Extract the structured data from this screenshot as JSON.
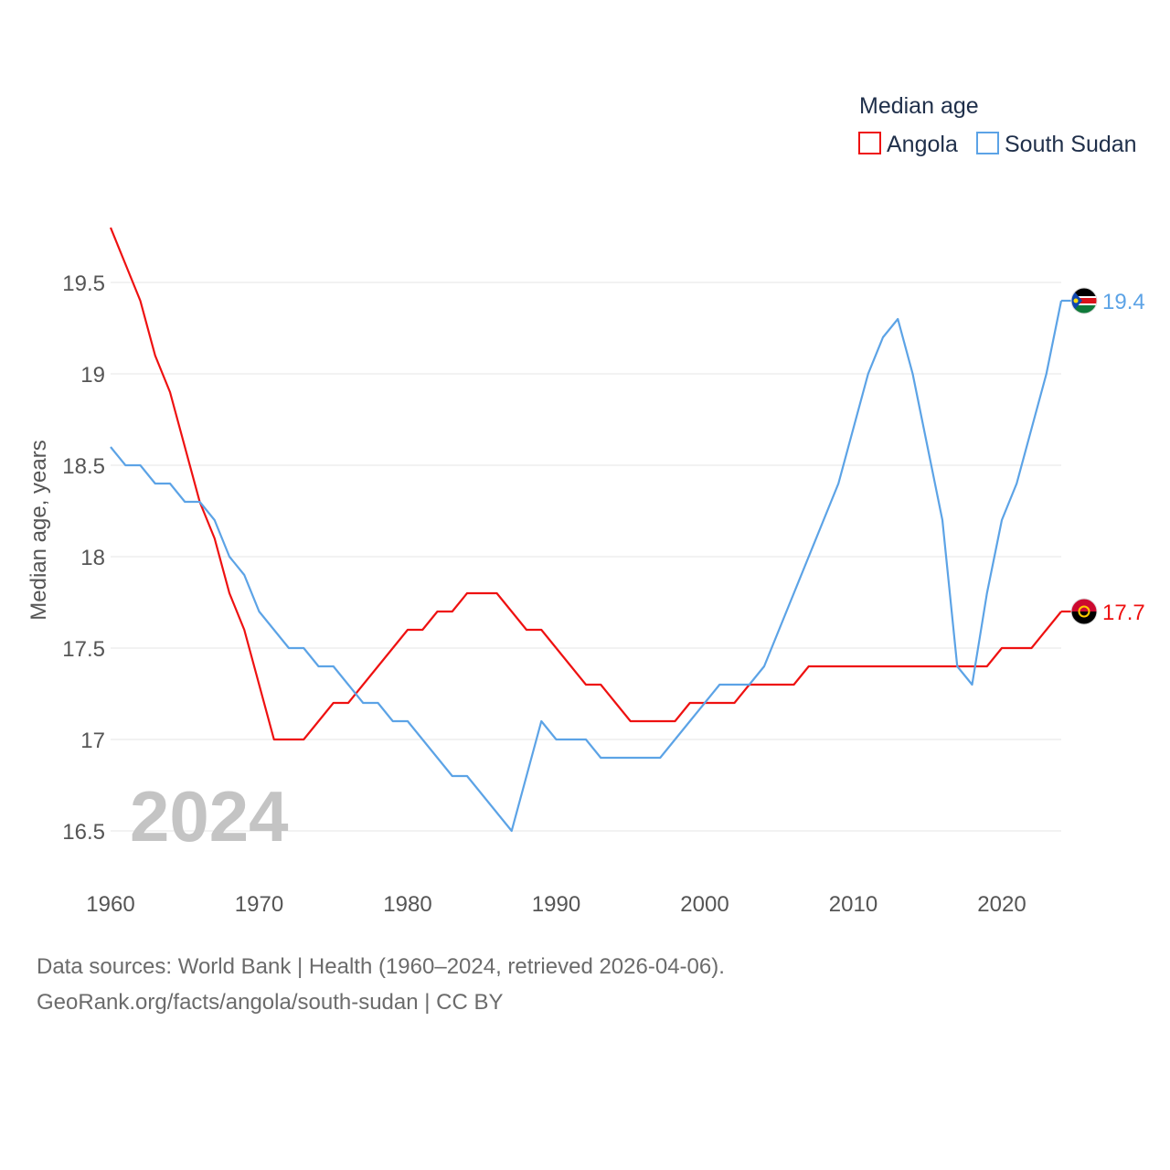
{
  "chart_data": {
    "type": "line",
    "title": "",
    "legend_title": "Median age",
    "ylabel": "Median age, years",
    "xlabel": "",
    "xlim": [
      1960,
      2024
    ],
    "ylim": [
      16.3,
      19.95
    ],
    "y_ticks": [
      16.5,
      17,
      17.5,
      18,
      18.5,
      19,
      19.5
    ],
    "y_tick_labels": [
      "16.5",
      "17",
      "17.5",
      "18",
      "18.5",
      "19",
      "19.5"
    ],
    "x_ticks": [
      1960,
      1970,
      1980,
      1990,
      2000,
      2010,
      2020
    ],
    "x_tick_labels": [
      "1960",
      "1970",
      "1980",
      "1990",
      "2000",
      "2010",
      "2020"
    ],
    "year_watermark": "2024",
    "legend_placement": "top-right",
    "grid": true,
    "x": [
      1960,
      1961,
      1962,
      1963,
      1964,
      1965,
      1966,
      1967,
      1968,
      1969,
      1970,
      1971,
      1972,
      1973,
      1974,
      1975,
      1976,
      1977,
      1978,
      1979,
      1980,
      1981,
      1982,
      1983,
      1984,
      1985,
      1986,
      1987,
      1988,
      1989,
      1990,
      1991,
      1992,
      1993,
      1994,
      1995,
      1996,
      1997,
      1998,
      1999,
      2000,
      2001,
      2002,
      2003,
      2004,
      2005,
      2006,
      2007,
      2008,
      2009,
      2010,
      2011,
      2012,
      2013,
      2014,
      2015,
      2016,
      2017,
      2018,
      2019,
      2020,
      2021,
      2022,
      2023,
      2024
    ],
    "series": [
      {
        "name": "Angola",
        "color": "#ee1111",
        "end_label": "17.7",
        "flag_icon": "angola-flag-icon",
        "values": [
          19.8,
          19.6,
          19.4,
          19.1,
          18.9,
          18.6,
          18.3,
          18.1,
          17.8,
          17.6,
          17.3,
          17.0,
          17.0,
          17.0,
          17.1,
          17.2,
          17.2,
          17.3,
          17.4,
          17.5,
          17.6,
          17.6,
          17.7,
          17.7,
          17.8,
          17.8,
          17.8,
          17.7,
          17.6,
          17.6,
          17.5,
          17.4,
          17.3,
          17.3,
          17.2,
          17.1,
          17.1,
          17.1,
          17.1,
          17.2,
          17.2,
          17.2,
          17.2,
          17.3,
          17.3,
          17.3,
          17.3,
          17.4,
          17.4,
          17.4,
          17.4,
          17.4,
          17.4,
          17.4,
          17.4,
          17.4,
          17.4,
          17.4,
          17.4,
          17.4,
          17.5,
          17.5,
          17.5,
          17.6,
          17.7
        ]
      },
      {
        "name": "South Sudan",
        "color": "#5ca3e6",
        "end_label": "19.4",
        "flag_icon": "south-sudan-flag-icon",
        "values": [
          18.6,
          18.5,
          18.5,
          18.4,
          18.4,
          18.3,
          18.3,
          18.2,
          18.0,
          17.9,
          17.7,
          17.6,
          17.5,
          17.5,
          17.4,
          17.4,
          17.3,
          17.2,
          17.2,
          17.1,
          17.1,
          17.0,
          16.9,
          16.8,
          16.8,
          16.7,
          16.6,
          16.5,
          16.8,
          17.1,
          17.0,
          17.0,
          17.0,
          16.9,
          16.9,
          16.9,
          16.9,
          16.9,
          17.0,
          17.1,
          17.2,
          17.3,
          17.3,
          17.3,
          17.4,
          17.6,
          17.8,
          18.0,
          18.2,
          18.4,
          18.7,
          19.0,
          19.2,
          19.3,
          19.0,
          18.6,
          18.2,
          17.4,
          17.3,
          17.8,
          18.2,
          18.4,
          18.7,
          19.0,
          19.4
        ]
      }
    ]
  },
  "footer": {
    "source": "Data sources: World Bank | Health (1960–2024, retrieved 2026-04-06).",
    "link": "GeoRank.org/facts/angola/south-sudan | CC BY"
  }
}
